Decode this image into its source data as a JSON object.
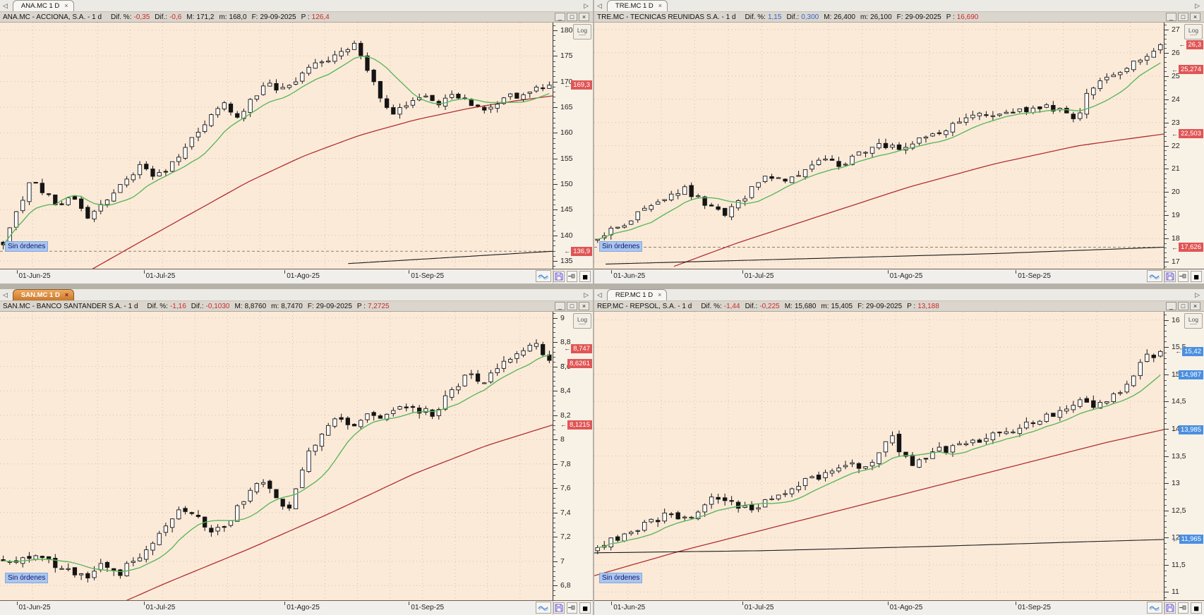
{
  "labels": {
    "dif_pct": "Dif. %:",
    "dif": "Dif.:",
    "max": "M:",
    "min": "m:",
    "date": "F:",
    "p": "P :",
    "sin_ordenes": "Sin órdenes",
    "log": "Log"
  },
  "icons": {
    "tab_scroll_left": "◁",
    "tab_scroll_right": "▷",
    "minimize": "_",
    "maximize": "□",
    "close": "×",
    "tab_close": "×",
    "black_square": "■"
  },
  "time_ticks": [
    {
      "label": "01-Jun-25",
      "f": 0.03
    },
    {
      "label": "01-Jul-25",
      "f": 0.26
    },
    {
      "label": "01-Ago-25",
      "f": 0.515
    },
    {
      "label": "01-Sep-25",
      "f": 0.74
    }
  ],
  "panels": [
    {
      "tab": "ANA.MC 1 D",
      "active": false,
      "title": {
        "name": "ANA.MC - ACCIONA, S.A. -  1 d",
        "dif_pct": "-0,35",
        "dif": "-0,6",
        "max": "171,2",
        "min": "168,0",
        "date": "29-09-2025",
        "p": "126,4",
        "trend": "neg"
      },
      "chart": {
        "type": "candlestick",
        "ymin": 133.5,
        "ymax": 181.5,
        "step": 5,
        "candles": {
          "n": 85,
          "seed": 11,
          "amp": 1.1,
          "close_anchors": [
            [
              0,
              138.5
            ],
            [
              0.02,
              144
            ],
            [
              0.05,
              150.5
            ],
            [
              0.07,
              149
            ],
            [
              0.1,
              146
            ],
            [
              0.13,
              147.5
            ],
            [
              0.155,
              143.5
            ],
            [
              0.18,
              146
            ],
            [
              0.2,
              148
            ],
            [
              0.225,
              151
            ],
            [
              0.25,
              153.5
            ],
            [
              0.27,
              152
            ],
            [
              0.3,
              153
            ],
            [
              0.33,
              157
            ],
            [
              0.36,
              160
            ],
            [
              0.385,
              163.5
            ],
            [
              0.4,
              167
            ],
            [
              0.42,
              163
            ],
            [
              0.44,
              164.5
            ],
            [
              0.46,
              167
            ],
            [
              0.48,
              170
            ],
            [
              0.5,
              168
            ],
            [
              0.52,
              168.5
            ],
            [
              0.545,
              171.5
            ],
            [
              0.57,
              173.5
            ],
            [
              0.6,
              174.5
            ],
            [
              0.62,
              176
            ],
            [
              0.64,
              177.5
            ],
            [
              0.655,
              175.5
            ],
            [
              0.67,
              172
            ],
            [
              0.685,
              168
            ],
            [
              0.7,
              165
            ],
            [
              0.72,
              163.5
            ],
            [
              0.74,
              166
            ],
            [
              0.76,
              167.5
            ],
            [
              0.78,
              167
            ],
            [
              0.8,
              165.5
            ],
            [
              0.82,
              167.5
            ],
            [
              0.84,
              167
            ],
            [
              0.86,
              165.5
            ],
            [
              0.88,
              164.5
            ],
            [
              0.9,
              166
            ],
            [
              0.93,
              167
            ],
            [
              0.96,
              168
            ],
            [
              1,
              169.3
            ]
          ]
        },
        "ma_green_period": 9,
        "ma_red": [
          [
            0.16,
            133
          ],
          [
            0.25,
            138.5
          ],
          [
            0.35,
            144.5
          ],
          [
            0.45,
            150.5
          ],
          [
            0.55,
            155.5
          ],
          [
            0.65,
            159.5
          ],
          [
            0.75,
            162.5
          ],
          [
            0.85,
            164.8
          ],
          [
            0.93,
            166.2
          ],
          [
            1,
            167.2
          ]
        ],
        "ma_black": [
          [
            0.63,
            134.5
          ],
          [
            0.8,
            135.6
          ],
          [
            1,
            136.9
          ]
        ],
        "level_lines": [
          136.9
        ],
        "tags": [
          {
            "t": "169,3",
            "v": 169.3,
            "c": "red"
          },
          {
            "t": "136,9",
            "v": 136.9,
            "c": "red"
          }
        ]
      }
    },
    {
      "tab": "TRE.MC 1 D",
      "active": false,
      "title": {
        "name": "TRE.MC - TECNICAS REUNIDAS S.A. -  1 d",
        "dif_pct": "1,15",
        "dif": "0,300",
        "max": "26,400",
        "min": "26,100",
        "date": "29-09-2025",
        "p": "16,690",
        "trend": "pos"
      },
      "chart": {
        "type": "candlestick",
        "ymin": 16.7,
        "ymax": 27.3,
        "step": 1,
        "candles": {
          "n": 85,
          "seed": 22,
          "amp": 0.26,
          "close_anchors": [
            [
              0,
              18.05
            ],
            [
              0.03,
              18.4
            ],
            [
              0.06,
              18.9
            ],
            [
              0.09,
              19.3
            ],
            [
              0.12,
              19.6
            ],
            [
              0.15,
              20.2
            ],
            [
              0.17,
              19.9
            ],
            [
              0.2,
              19.4
            ],
            [
              0.22,
              19.0
            ],
            [
              0.25,
              19.5
            ],
            [
              0.28,
              20.3
            ],
            [
              0.31,
              20.7
            ],
            [
              0.34,
              20.5
            ],
            [
              0.37,
              21.0
            ],
            [
              0.4,
              21.4
            ],
            [
              0.43,
              21.1
            ],
            [
              0.46,
              21.6
            ],
            [
              0.49,
              21.9
            ],
            [
              0.52,
              22.1
            ],
            [
              0.55,
              21.8
            ],
            [
              0.58,
              22.4
            ],
            [
              0.61,
              22.7
            ],
            [
              0.64,
              23.0
            ],
            [
              0.67,
              23.3
            ],
            [
              0.7,
              23.2
            ],
            [
              0.73,
              23.6
            ],
            [
              0.76,
              23.4
            ],
            [
              0.79,
              23.7
            ],
            [
              0.82,
              23.5
            ],
            [
              0.85,
              23.2
            ],
            [
              0.875,
              24.4
            ],
            [
              0.9,
              25.0
            ],
            [
              0.93,
              25.3
            ],
            [
              0.96,
              25.7
            ],
            [
              0.98,
              26.0
            ],
            [
              1,
              26.35
            ]
          ]
        },
        "ma_green_period": 9,
        "ma_red": [
          [
            0.14,
            16.8
          ],
          [
            0.25,
            17.8
          ],
          [
            0.4,
            19.0
          ],
          [
            0.55,
            20.2
          ],
          [
            0.7,
            21.2
          ],
          [
            0.85,
            22.0
          ],
          [
            1,
            22.5
          ]
        ],
        "ma_black": [
          [
            0.02,
            16.9
          ],
          [
            0.4,
            17.15
          ],
          [
            0.7,
            17.35
          ],
          [
            1,
            17.626
          ]
        ],
        "level_lines": [
          17.626
        ],
        "tags": [
          {
            "t": "26,3",
            "v": 26.35,
            "c": "red"
          },
          {
            "t": "25,274",
            "v": 25.274,
            "c": "red"
          },
          {
            "t": "22,503",
            "v": 22.503,
            "c": "red"
          },
          {
            "t": "17,626",
            "v": 17.626,
            "c": "red"
          }
        ]
      }
    },
    {
      "tab": "SAN.MC 1 D",
      "active": true,
      "title": {
        "name": "SAN.MC - BANCO SANTANDER S.A. -  1 d",
        "dif_pct": "-1,16",
        "dif": "-0,1030",
        "max": "8,8760",
        "min": "8,7470",
        "date": "29-09-2025",
        "p": "7,2725",
        "trend": "neg"
      },
      "chart": {
        "type": "candlestick",
        "ymin": 6.68,
        "ymax": 9.05,
        "step": 0.2,
        "candles": {
          "n": 85,
          "seed": 33,
          "amp": 0.055,
          "close_anchors": [
            [
              0,
              7.02
            ],
            [
              0.03,
              6.99
            ],
            [
              0.06,
              7.06
            ],
            [
              0.09,
              6.97
            ],
            [
              0.12,
              6.92
            ],
            [
              0.15,
              6.86
            ],
            [
              0.18,
              6.96
            ],
            [
              0.21,
              6.88
            ],
            [
              0.24,
              7.02
            ],
            [
              0.27,
              7.12
            ],
            [
              0.3,
              7.28
            ],
            [
              0.33,
              7.44
            ],
            [
              0.355,
              7.36
            ],
            [
              0.38,
              7.26
            ],
            [
              0.41,
              7.32
            ],
            [
              0.44,
              7.5
            ],
            [
              0.47,
              7.68
            ],
            [
              0.5,
              7.55
            ],
            [
              0.52,
              7.42
            ],
            [
              0.55,
              7.8
            ],
            [
              0.58,
              8.05
            ],
            [
              0.61,
              8.18
            ],
            [
              0.64,
              8.12
            ],
            [
              0.67,
              8.24
            ],
            [
              0.7,
              8.18
            ],
            [
              0.73,
              8.3
            ],
            [
              0.76,
              8.24
            ],
            [
              0.79,
              8.2
            ],
            [
              0.82,
              8.42
            ],
            [
              0.85,
              8.52
            ],
            [
              0.88,
              8.48
            ],
            [
              0.91,
              8.62
            ],
            [
              0.94,
              8.72
            ],
            [
              0.97,
              8.82
            ],
            [
              1,
              8.65
            ]
          ]
        },
        "ma_green_period": 9,
        "ma_red": [
          [
            0.19,
            6.6
          ],
          [
            0.3,
            6.82
          ],
          [
            0.45,
            7.1
          ],
          [
            0.6,
            7.4
          ],
          [
            0.75,
            7.72
          ],
          [
            0.88,
            7.95
          ],
          [
            1,
            8.12
          ]
        ],
        "ma_black": null,
        "level_lines": [],
        "tags": [
          {
            "t": "8,747",
            "v": 8.747,
            "c": "red"
          },
          {
            "t": "8,6261",
            "v": 8.6261,
            "c": "red"
          },
          {
            "t": "8,1215",
            "v": 8.1215,
            "c": "red"
          }
        ]
      }
    },
    {
      "tab": "REP.MC 1 D",
      "active": false,
      "title": {
        "name": "REP.MC - REPSOL,  S.A. -  1 d",
        "dif_pct": "-1,44",
        "dif": "-0,225",
        "max": "15,680",
        "min": "15,405",
        "date": "29-09-2025",
        "p": "13,188",
        "trend": "neg"
      },
      "chart": {
        "type": "candlestick",
        "ymin": 10.85,
        "ymax": 16.15,
        "step": 0.5,
        "candles": {
          "n": 85,
          "seed": 44,
          "amp": 0.12,
          "close_anchors": [
            [
              0,
              11.85
            ],
            [
              0.03,
              11.95
            ],
            [
              0.06,
              12.1
            ],
            [
              0.09,
              12.25
            ],
            [
              0.12,
              12.42
            ],
            [
              0.15,
              12.3
            ],
            [
              0.18,
              12.55
            ],
            [
              0.21,
              12.72
            ],
            [
              0.24,
              12.6
            ],
            [
              0.27,
              12.5
            ],
            [
              0.3,
              12.68
            ],
            [
              0.33,
              12.85
            ],
            [
              0.36,
              13.0
            ],
            [
              0.39,
              13.12
            ],
            [
              0.42,
              13.28
            ],
            [
              0.45,
              13.38
            ],
            [
              0.48,
              13.3
            ],
            [
              0.5,
              13.6
            ],
            [
              0.52,
              13.92
            ],
            [
              0.54,
              13.55
            ],
            [
              0.56,
              13.38
            ],
            [
              0.59,
              13.55
            ],
            [
              0.62,
              13.62
            ],
            [
              0.65,
              13.68
            ],
            [
              0.68,
              13.78
            ],
            [
              0.71,
              13.9
            ],
            [
              0.74,
              14.0
            ],
            [
              0.77,
              14.12
            ],
            [
              0.8,
              14.22
            ],
            [
              0.83,
              14.35
            ],
            [
              0.86,
              14.5
            ],
            [
              0.89,
              14.42
            ],
            [
              0.92,
              14.6
            ],
            [
              0.95,
              14.95
            ],
            [
              0.975,
              15.3
            ],
            [
              1,
              15.42
            ]
          ]
        },
        "ma_green_period": 9,
        "ma_red": [
          [
            0,
            11.3
          ],
          [
            0.15,
            11.75
          ],
          [
            0.3,
            12.15
          ],
          [
            0.45,
            12.55
          ],
          [
            0.6,
            12.95
          ],
          [
            0.75,
            13.35
          ],
          [
            0.9,
            13.75
          ],
          [
            1,
            13.985
          ]
        ],
        "ma_black": [
          [
            0,
            11.72
          ],
          [
            0.3,
            11.76
          ],
          [
            0.6,
            11.84
          ],
          [
            0.85,
            11.92
          ],
          [
            1,
            11.965
          ]
        ],
        "level_lines": [],
        "tags": [
          {
            "t": "15,42",
            "v": 15.42,
            "c": "blue"
          },
          {
            "t": "14,987",
            "v": 14.987,
            "c": "blue"
          },
          {
            "t": "13,985",
            "v": 13.985,
            "c": "blue"
          },
          {
            "t": "11,965",
            "v": 11.965,
            "c": "blue"
          }
        ]
      }
    }
  ]
}
